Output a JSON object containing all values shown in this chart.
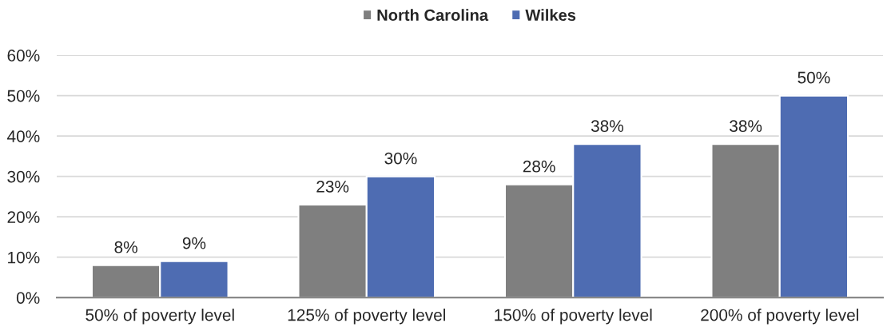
{
  "chart_data": {
    "type": "bar",
    "categories": [
      "50% of poverty level",
      "125% of poverty level",
      "150% of poverty level",
      "200% of poverty level"
    ],
    "series": [
      {
        "name": "North Carolina",
        "color": "#7f7f7f",
        "values": [
          8,
          23,
          28,
          38
        ],
        "value_labels": [
          "8%",
          "23%",
          "28%",
          "38%"
        ]
      },
      {
        "name": "Wilkes",
        "color": "#4e6cb2",
        "values": [
          9,
          30,
          38,
          50
        ],
        "value_labels": [
          "9%",
          "30%",
          "38%",
          "50%"
        ]
      }
    ],
    "ylim": [
      0,
      60
    ],
    "yticks": [
      {
        "value": 0,
        "label": "0%"
      },
      {
        "value": 10,
        "label": "10%"
      },
      {
        "value": 20,
        "label": "20%"
      },
      {
        "value": 30,
        "label": "30%"
      },
      {
        "value": 40,
        "label": "40%"
      },
      {
        "value": 50,
        "label": "50%"
      },
      {
        "value": 60,
        "label": "60%"
      }
    ],
    "grid": "y",
    "legend": "top"
  }
}
